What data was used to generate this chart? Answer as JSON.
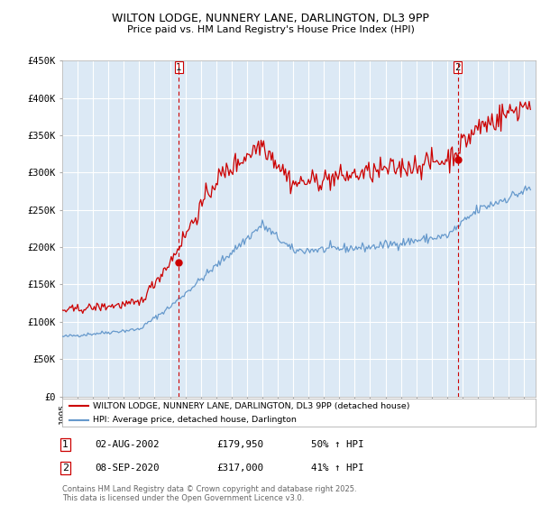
{
  "title_line1": "WILTON LODGE, NUNNERY LANE, DARLINGTON, DL3 9PP",
  "title_line2": "Price paid vs. HM Land Registry's House Price Index (HPI)",
  "legend_red": "WILTON LODGE, NUNNERY LANE, DARLINGTON, DL3 9PP (detached house)",
  "legend_blue": "HPI: Average price, detached house, Darlington",
  "footer": "Contains HM Land Registry data © Crown copyright and database right 2025.\nThis data is licensed under the Open Government Licence v3.0.",
  "vline1_year": 2002.58,
  "vline2_year": 2020.69,
  "marker1_value": 179950,
  "marker2_value": 317000,
  "ylim": [
    0,
    450000
  ],
  "yticks": [
    0,
    50000,
    100000,
    150000,
    200000,
    250000,
    300000,
    350000,
    400000,
    450000
  ],
  "ytick_labels": [
    "£0",
    "£50K",
    "£100K",
    "£150K",
    "£200K",
    "£250K",
    "£300K",
    "£350K",
    "£400K",
    "£450K"
  ],
  "background_color": "#dce9f5",
  "grid_color": "#ffffff",
  "red_color": "#cc0000",
  "blue_color": "#6699cc",
  "ann1_date": "02-AUG-2002",
  "ann1_price": "£179,950",
  "ann1_hpi": "50% ↑ HPI",
  "ann2_date": "08-SEP-2020",
  "ann2_price": "£317,000",
  "ann2_hpi": "41% ↑ HPI"
}
